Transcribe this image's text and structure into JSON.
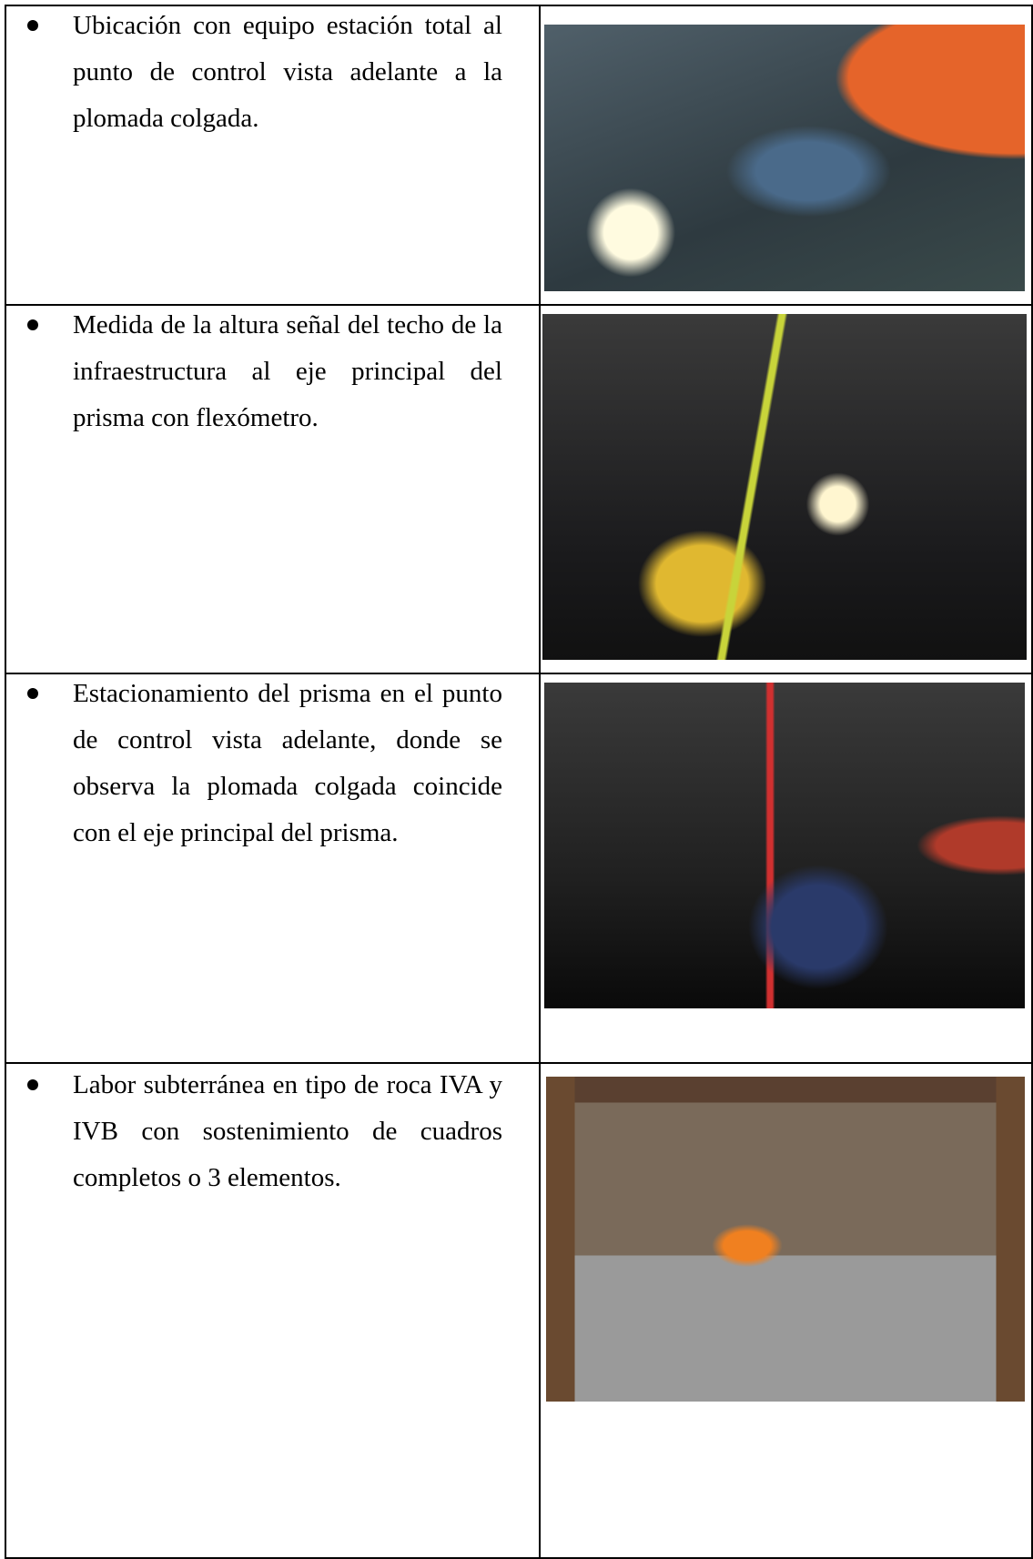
{
  "table": {
    "rows": [
      {
        "text": "Ubicación con equipo estación total al punto de control vista adelante a la plomada colgada."
      },
      {
        "text": "Medida de la altura señal del techo de la infraestructura al eje principal del prisma con flexómetro."
      },
      {
        "text": "Estacionamiento del prisma en el punto de control vista adelante, donde se observa la plomada colgada coincide con el eje principal del prisma."
      },
      {
        "text": "Labor subterránea en tipo de roca IVA y IVB con sostenimiento de cuadros completos o 3 elementos."
      }
    ]
  }
}
